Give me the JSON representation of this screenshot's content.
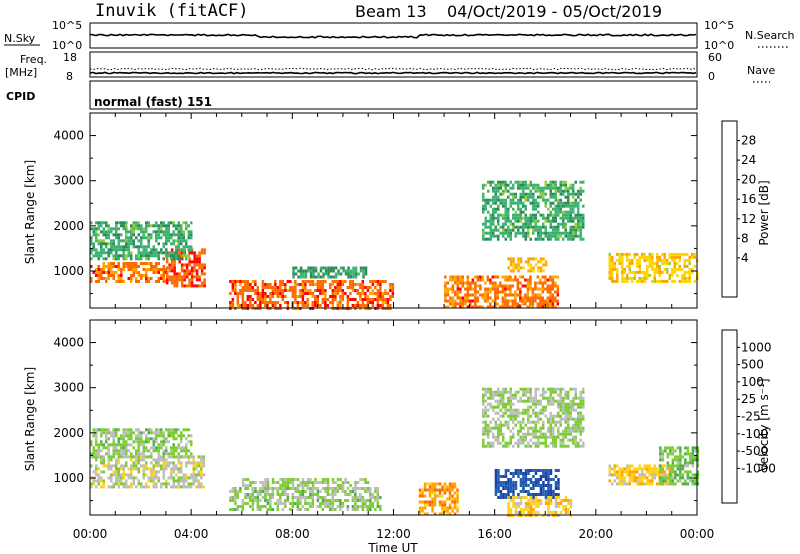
{
  "header": {
    "station": "Inuvik  (fitACF)",
    "beam": "Beam 13",
    "date_range": "04/Oct/2019 - 05/Oct/2019"
  },
  "status_panels": {
    "nsky_label": "N.Sky",
    "nsky_ticks": [
      "10^5",
      "10^0"
    ],
    "nsearch_label": "N.Search",
    "nsearch_ticks": [
      "10^5",
      "10^0"
    ],
    "freq_label": "Freq.",
    "freq_unit": "[MHz]",
    "freq_ticks": [
      "18",
      "8"
    ],
    "nave_label": "Nave",
    "nave_ticks": [
      "60",
      "0"
    ],
    "cpid_label": "CPID",
    "cpid_value": "normal (fast) 151"
  },
  "axes": {
    "ylabel": "Slant Range [km]",
    "yticks": [
      "4000",
      "3000",
      "2000",
      "1000"
    ],
    "xlabel": "Time UT",
    "xticks": [
      "00:00",
      "04:00",
      "08:00",
      "12:00",
      "16:00",
      "20:00",
      "00:00"
    ]
  },
  "colorbars": {
    "power": {
      "label": "Power [dB]",
      "ticks": [
        "28",
        "24",
        "20",
        "16",
        "12",
        "8",
        "4"
      ],
      "colors": [
        "#ff0000",
        "#ff6a00",
        "#ffa500",
        "#ffd700",
        "#9acd32",
        "#3cb371",
        "#2e8b57",
        "#1e5aa8",
        "#0000ff"
      ]
    },
    "velocity": {
      "label": "Velocity [m s⁻¹]",
      "ticks": [
        "1000",
        "500",
        "100",
        "25",
        "-25",
        "-100",
        "-500",
        "-1000"
      ],
      "colors": [
        "#1f3fa8",
        "#2060b0",
        "#2e8b57",
        "#4cae4c",
        "#7ccd32",
        "#bdbdbd",
        "#ffd21e",
        "#ffa500",
        "#ff6a00",
        "#ff0000"
      ]
    }
  },
  "chart_data": [
    {
      "type": "heatmap",
      "title": "Power",
      "xlabel": "Time UT",
      "ylabel": "Slant Range [km]",
      "xlim": [
        "04/Oct/2019 00:00",
        "05/Oct/2019 00:00"
      ],
      "ylim": [
        180,
        4500
      ],
      "colorbar_label": "Power [dB]",
      "colorbar_range": [
        0,
        32
      ],
      "regions": [
        {
          "t_start": "00:00",
          "t_end": "03:00",
          "range_low": 800,
          "range_high": 1200,
          "value": 26
        },
        {
          "t_start": "03:00",
          "t_end": "04:30",
          "range_low": 700,
          "range_high": 1500,
          "value": 28
        },
        {
          "t_start": "00:00",
          "t_end": "04:00",
          "range_low": 1300,
          "range_high": 2100,
          "value": 12
        },
        {
          "t_start": "05:30",
          "t_end": "12:00",
          "range_low": 200,
          "range_high": 800,
          "value": 27
        },
        {
          "t_start": "08:00",
          "t_end": "11:00",
          "range_low": 900,
          "range_high": 1100,
          "value": 10
        },
        {
          "t_start": "14:00",
          "t_end": "18:30",
          "range_low": 200,
          "range_high": 900,
          "value": 26
        },
        {
          "t_start": "16:30",
          "t_end": "18:00",
          "range_low": 1000,
          "range_high": 1300,
          "value": 22
        },
        {
          "t_start": "15:30",
          "t_end": "19:30",
          "range_low": 1700,
          "range_high": 3000,
          "value": 12
        },
        {
          "t_start": "20:30",
          "t_end": "24:00",
          "range_low": 800,
          "range_high": 1400,
          "value": 20
        }
      ]
    },
    {
      "type": "heatmap",
      "title": "Velocity",
      "xlabel": "Time UT",
      "ylabel": "Slant Range [km]",
      "xlim": [
        "04/Oct/2019 00:00",
        "05/Oct/2019 00:00"
      ],
      "ylim": [
        180,
        4500
      ],
      "colorbar_label": "Velocity [m s⁻¹]",
      "colorbar_range": [
        -1000,
        1000
      ],
      "regions": [
        {
          "t_start": "00:00",
          "t_end": "04:30",
          "range_low": 800,
          "range_high": 1500,
          "value": -100
        },
        {
          "t_start": "00:00",
          "t_end": "04:00",
          "range_low": 1500,
          "range_high": 2100,
          "value": 50
        },
        {
          "t_start": "05:30",
          "t_end": "11:30",
          "range_low": 300,
          "range_high": 800,
          "value": 50
        },
        {
          "t_start": "06:00",
          "t_end": "11:00",
          "range_low": 800,
          "range_high": 1000,
          "value": 0
        },
        {
          "t_start": "13:00",
          "t_end": "14:30",
          "range_low": 200,
          "range_high": 900,
          "value": -500
        },
        {
          "t_start": "16:00",
          "t_end": "18:30",
          "range_low": 600,
          "range_high": 1200,
          "value": 800
        },
        {
          "t_start": "16:30",
          "t_end": "19:00",
          "range_low": 200,
          "range_high": 600,
          "value": -300
        },
        {
          "t_start": "15:30",
          "t_end": "19:30",
          "range_low": 1700,
          "range_high": 3000,
          "value": 0
        },
        {
          "t_start": "20:30",
          "t_end": "23:00",
          "range_low": 900,
          "range_high": 1300,
          "value": -300
        },
        {
          "t_start": "22:30",
          "t_end": "24:00",
          "range_low": 900,
          "range_high": 1700,
          "value": 150
        }
      ]
    }
  ]
}
